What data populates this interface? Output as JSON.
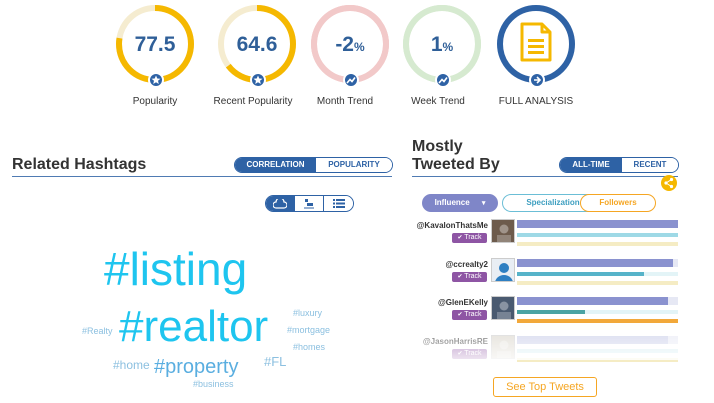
{
  "metrics": [
    {
      "value": "77.5",
      "unit": "",
      "label": "Popularity",
      "color": "#f5b800",
      "track": "#f5ecd0",
      "progress": 0.775,
      "badge_icon": "star-icon"
    },
    {
      "value": "64.6",
      "unit": "",
      "label": "Recent Popularity",
      "color": "#f5b800",
      "track": "#f5ecd0",
      "progress": 0.646,
      "badge_icon": "star-icon"
    },
    {
      "value": "-2",
      "unit": "%",
      "label": "Month Trend",
      "color": "#f2c9c9",
      "track": "#f2c9c9",
      "progress": 1.0,
      "badge_icon": "trend-icon"
    },
    {
      "value": "1",
      "unit": "%",
      "label": "Week Trend",
      "color": "#d6ead0",
      "track": "#d6ead0",
      "progress": 1.0,
      "badge_icon": "trend-icon"
    }
  ],
  "full_analysis": {
    "label": "FULL ANALYSIS",
    "ring_color": "#2e62a5",
    "icon": "document-icon",
    "icon_color": "#f5b800"
  },
  "related": {
    "title": "Related Hashtags",
    "tabs": [
      "CORRELATION",
      "POPULARITY"
    ],
    "active_tab": 0,
    "views": [
      "cloud-view-icon",
      "chart-view-icon",
      "list-view-icon"
    ],
    "tags": [
      {
        "text": "#listing",
        "size": 46,
        "color": "#1ec5ef"
      },
      {
        "text": "#realtor",
        "size": 44,
        "color": "#1ec5ef"
      },
      {
        "text": "#property",
        "size": 20,
        "color": "#5aaee0"
      },
      {
        "text": "#home",
        "size": 12,
        "color": "#8cc0e0"
      },
      {
        "text": "#FL",
        "size": 13,
        "color": "#8cc0e0"
      },
      {
        "text": "#luxury",
        "size": 9,
        "color": "#8cc0e0"
      },
      {
        "text": "#mortgage",
        "size": 9,
        "color": "#8cc0e0"
      },
      {
        "text": "#homes",
        "size": 9,
        "color": "#8cc0e0"
      },
      {
        "text": "#Realty",
        "size": 9,
        "color": "#8cc0e0"
      },
      {
        "text": "#business",
        "size": 9,
        "color": "#8cc0e0"
      }
    ]
  },
  "tweeted": {
    "title_line1": "Mostly",
    "title_line2": "Tweeted By",
    "tabs": [
      "ALL-TIME",
      "RECENT"
    ],
    "active_tab": 0,
    "filters": [
      {
        "label": "Influence",
        "active": true
      },
      {
        "label": "Specialization",
        "active": false
      },
      {
        "label": "Followers",
        "active": false
      }
    ],
    "track_label": "Track",
    "users": [
      {
        "handle": "@KavalonThatsMe",
        "bars": [
          1.0,
          1.0,
          1.0
        ]
      },
      {
        "handle": "@ccrealty2",
        "bars": [
          0.97,
          0.79,
          1.0
        ]
      },
      {
        "handle": "@GlenEKelly",
        "bars": [
          0.94,
          0.42,
          1.0
        ]
      },
      {
        "handle": "@JasonHarrisRE",
        "bars": [
          0.94,
          1.0,
          1.0
        ]
      }
    ],
    "see_top": "See Top Tweets"
  }
}
